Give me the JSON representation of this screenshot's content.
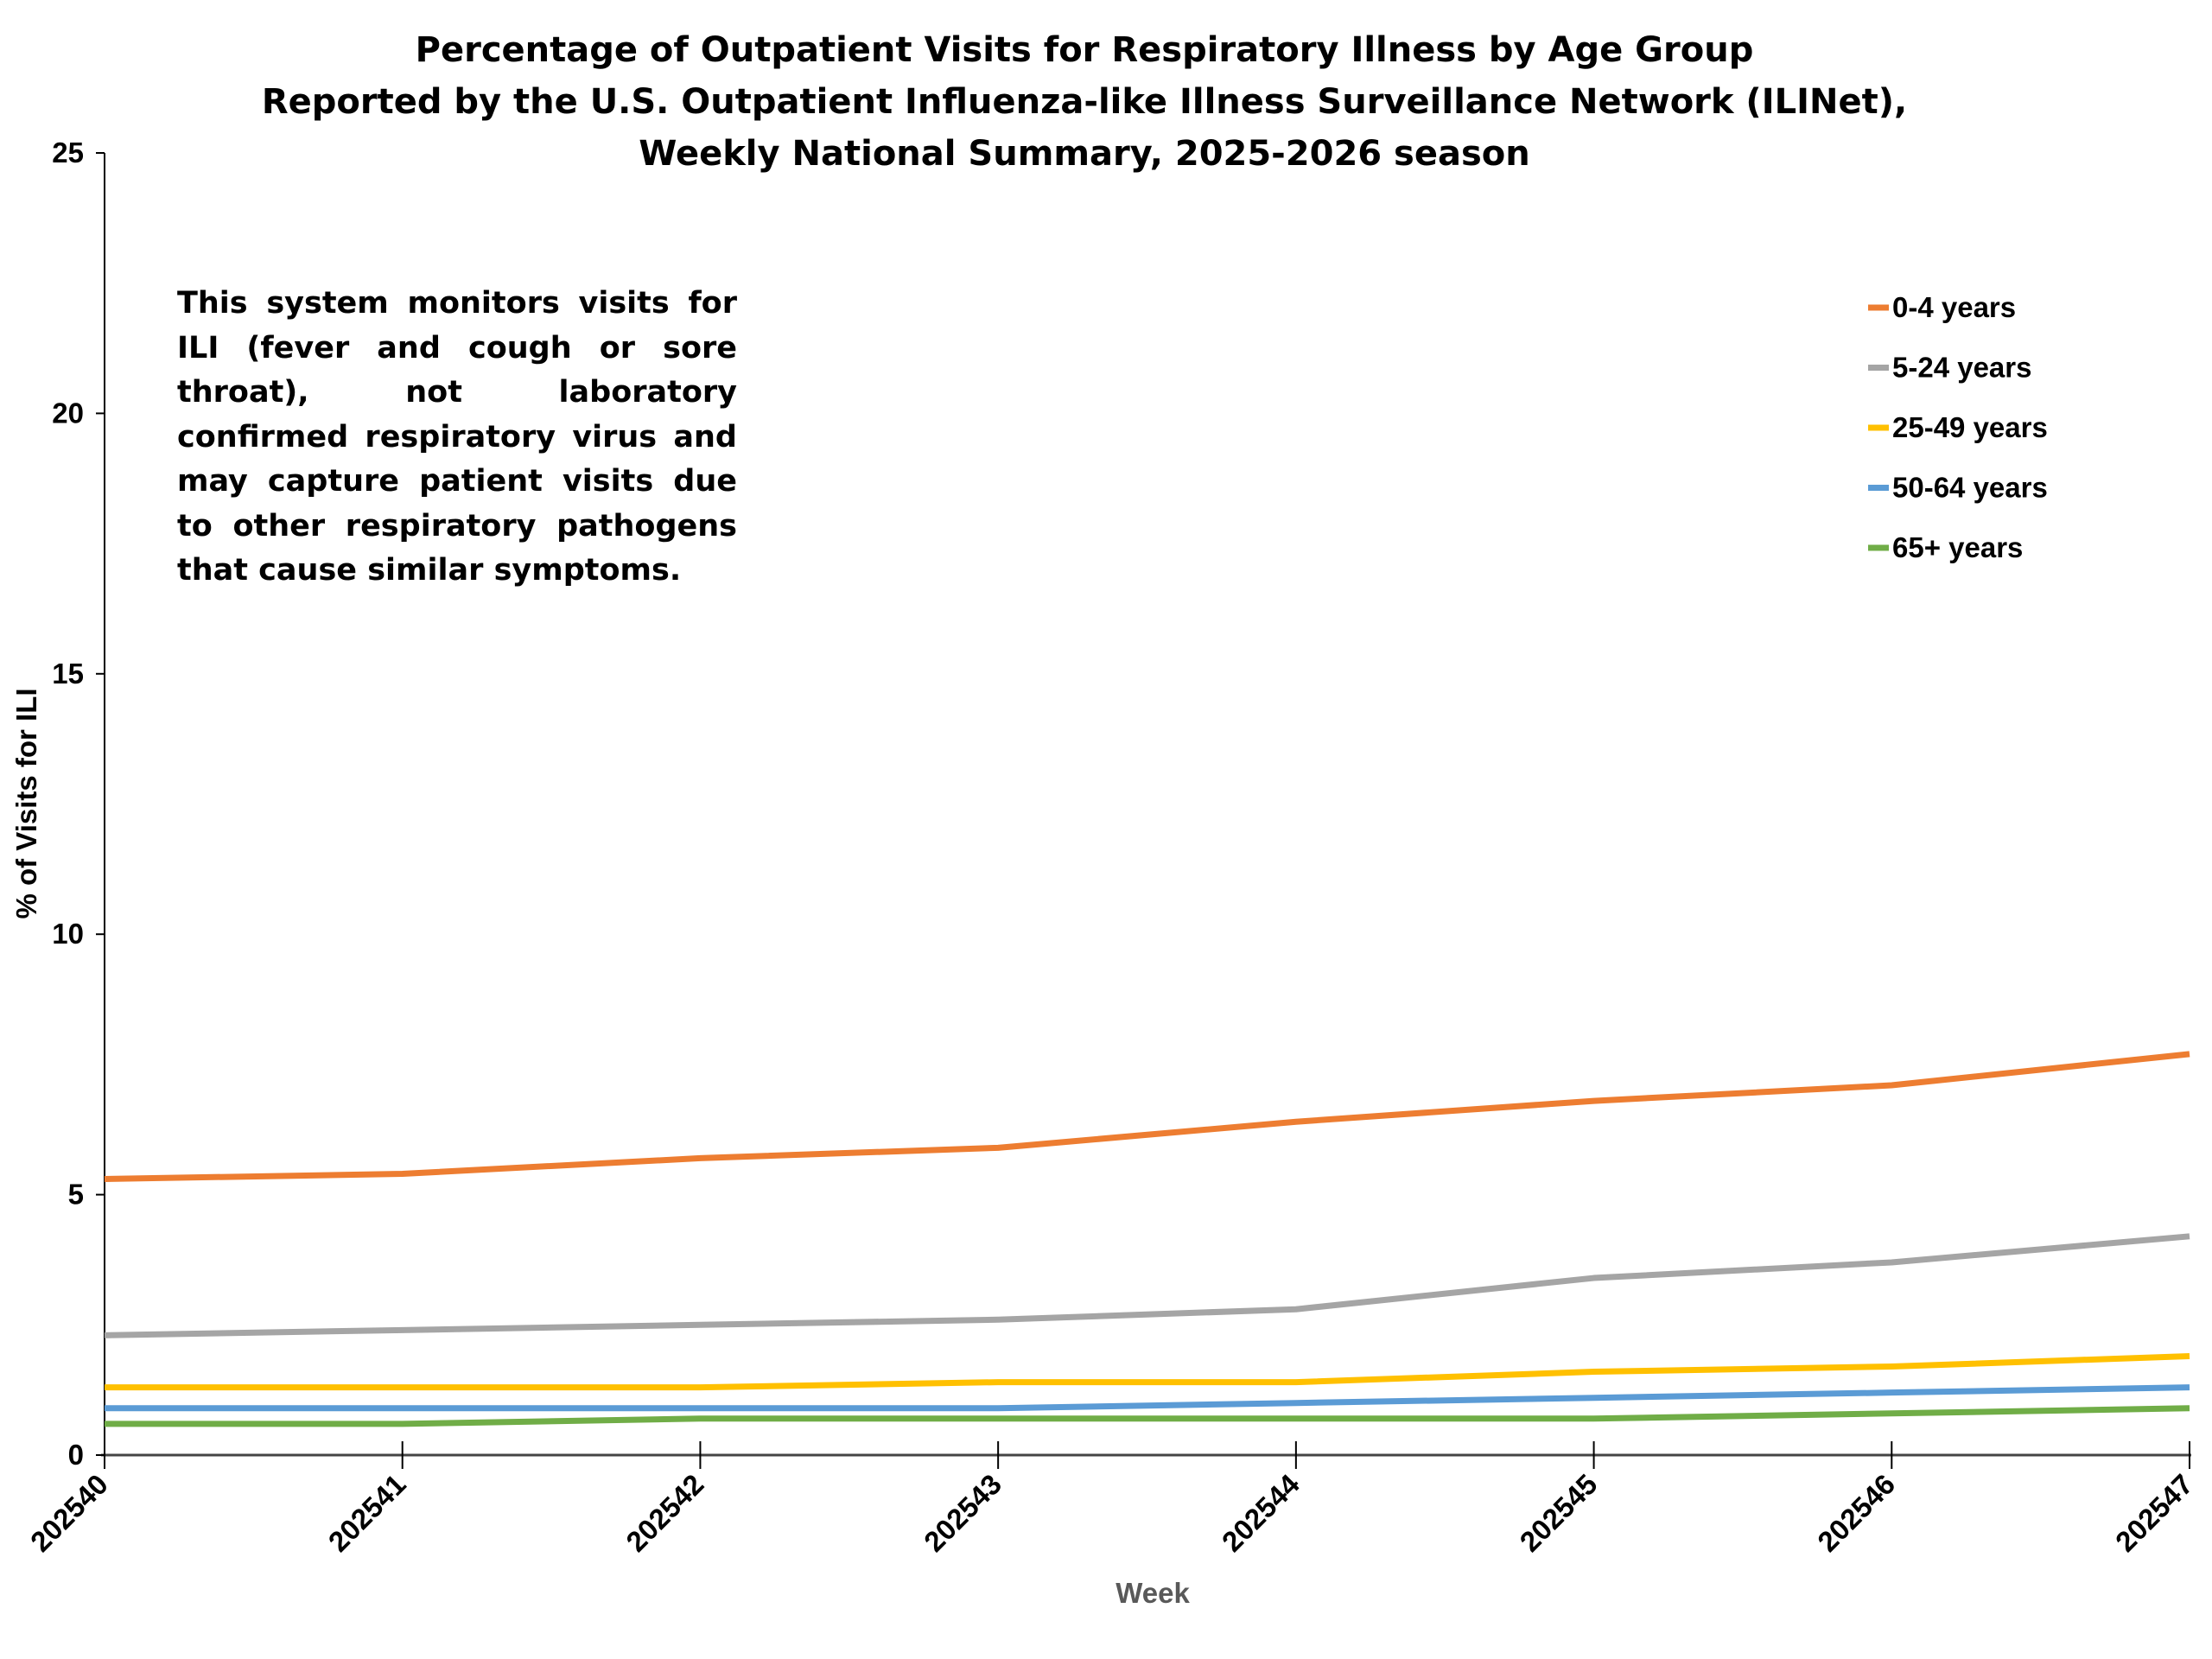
{
  "chart_data": {
    "type": "line",
    "title": [
      "Percentage of Outpatient Visits for Respiratory Illness by Age Group",
      "Reported by the U.S. Outpatient Influenza-like Illness Surveillance Network (ILINet),",
      "Weekly National Summary, 2025-2026 season"
    ],
    "xlabel": "Week",
    "ylabel": "% of Visits for ILI",
    "ylim": [
      0,
      25
    ],
    "yticks": [
      0,
      5,
      10,
      15,
      20,
      25
    ],
    "categories": [
      "202540",
      "202541",
      "202542",
      "202543",
      "202544",
      "202545",
      "202546",
      "202547"
    ],
    "legend_position": "top-right",
    "grid": false,
    "annotation": "This system monitors visits for ILI (fever and cough or sore throat), not laboratory confirmed respiratory virus and may capture patient visits due to other respiratory pathogens that cause similar symptoms.",
    "series": [
      {
        "name": "0-4 years",
        "color": "#ED7D31",
        "values": [
          5.3,
          5.4,
          5.7,
          5.9,
          6.4,
          6.8,
          7.1,
          7.7
        ]
      },
      {
        "name": "5-24 years",
        "color": "#A5A5A5",
        "values": [
          2.3,
          2.4,
          2.5,
          2.6,
          2.8,
          3.4,
          3.7,
          4.2
        ]
      },
      {
        "name": "25-49 years",
        "color": "#FFC000",
        "values": [
          1.3,
          1.3,
          1.3,
          1.4,
          1.4,
          1.6,
          1.7,
          1.9
        ]
      },
      {
        "name": "50-64 years",
        "color": "#5B9BD5",
        "values": [
          0.9,
          0.9,
          0.9,
          0.9,
          1.0,
          1.1,
          1.2,
          1.3
        ]
      },
      {
        "name": "65+ years",
        "color": "#70AD47",
        "values": [
          0.6,
          0.6,
          0.7,
          0.7,
          0.7,
          0.7,
          0.8,
          0.9
        ]
      }
    ]
  }
}
